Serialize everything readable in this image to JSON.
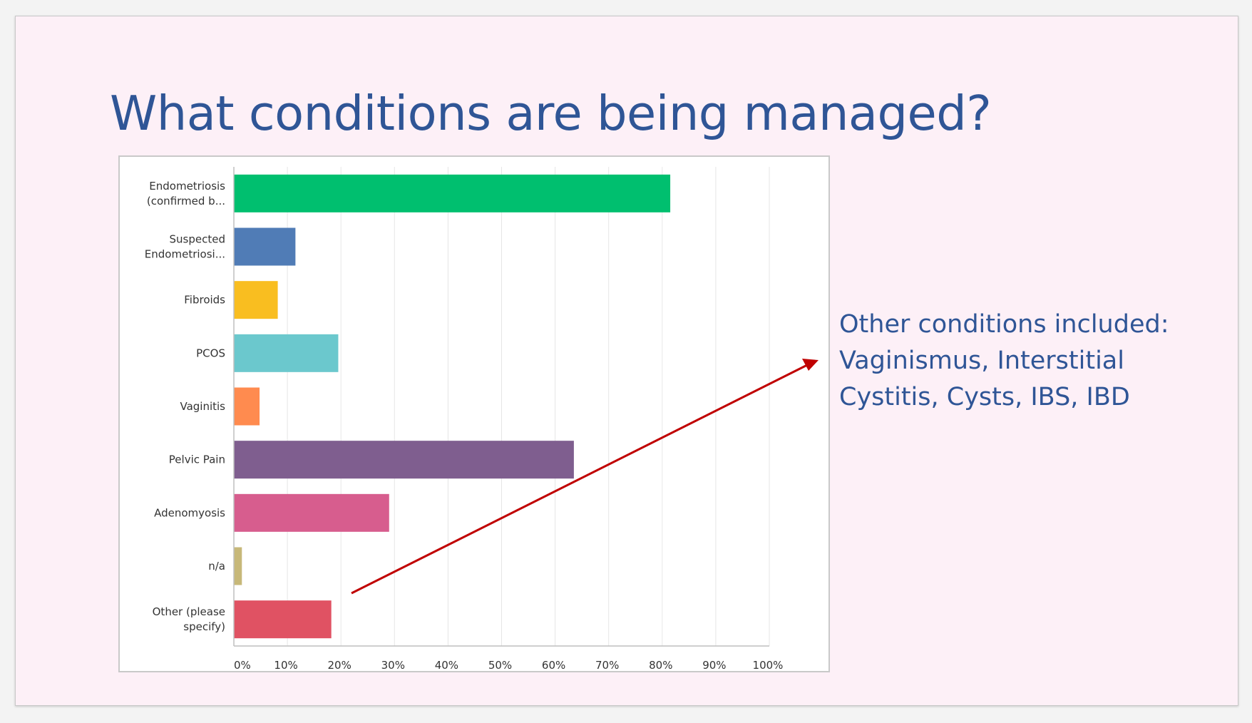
{
  "slide": {
    "title": "What conditions are being managed?",
    "note": "Other conditions included: Vaginismus, Interstitial Cystitis, Cysts, IBS, IBD"
  },
  "colors": {
    "title": "#2f5596",
    "arrow": "#c00000",
    "grid": "#e6e6e6",
    "axis": "#bfbfbf"
  },
  "chart_data": {
    "type": "bar",
    "orientation": "horizontal",
    "categories": [
      [
        "Endometriosis",
        "(confirmed b..."
      ],
      [
        "Suspected",
        "Endometriosi..."
      ],
      [
        "Fibroids"
      ],
      [
        "PCOS"
      ],
      [
        "Vaginitis"
      ],
      [
        "Pelvic Pain"
      ],
      [
        "Adenomyosis"
      ],
      [
        "n/a"
      ],
      [
        "Other (please",
        "specify)"
      ]
    ],
    "values": [
      81.5,
      11.5,
      8.2,
      19.5,
      4.8,
      63.5,
      29,
      1.5,
      18.2
    ],
    "bar_colors": [
      "#00bf6f",
      "#507cb6",
      "#f9be20",
      "#6bc8cd",
      "#ff8b4f",
      "#7f5e8f",
      "#d75d8e",
      "#c7b879",
      "#e05263"
    ],
    "xlim": [
      0,
      100
    ],
    "ticks": [
      0,
      10,
      20,
      30,
      40,
      50,
      60,
      70,
      80,
      90,
      100
    ],
    "tick_labels": [
      "0%",
      "10%",
      "20%",
      "30%",
      "40%",
      "50%",
      "60%",
      "70%",
      "80%",
      "90%",
      "100%"
    ],
    "grid": true,
    "title": "",
    "xlabel": "",
    "ylabel": ""
  }
}
